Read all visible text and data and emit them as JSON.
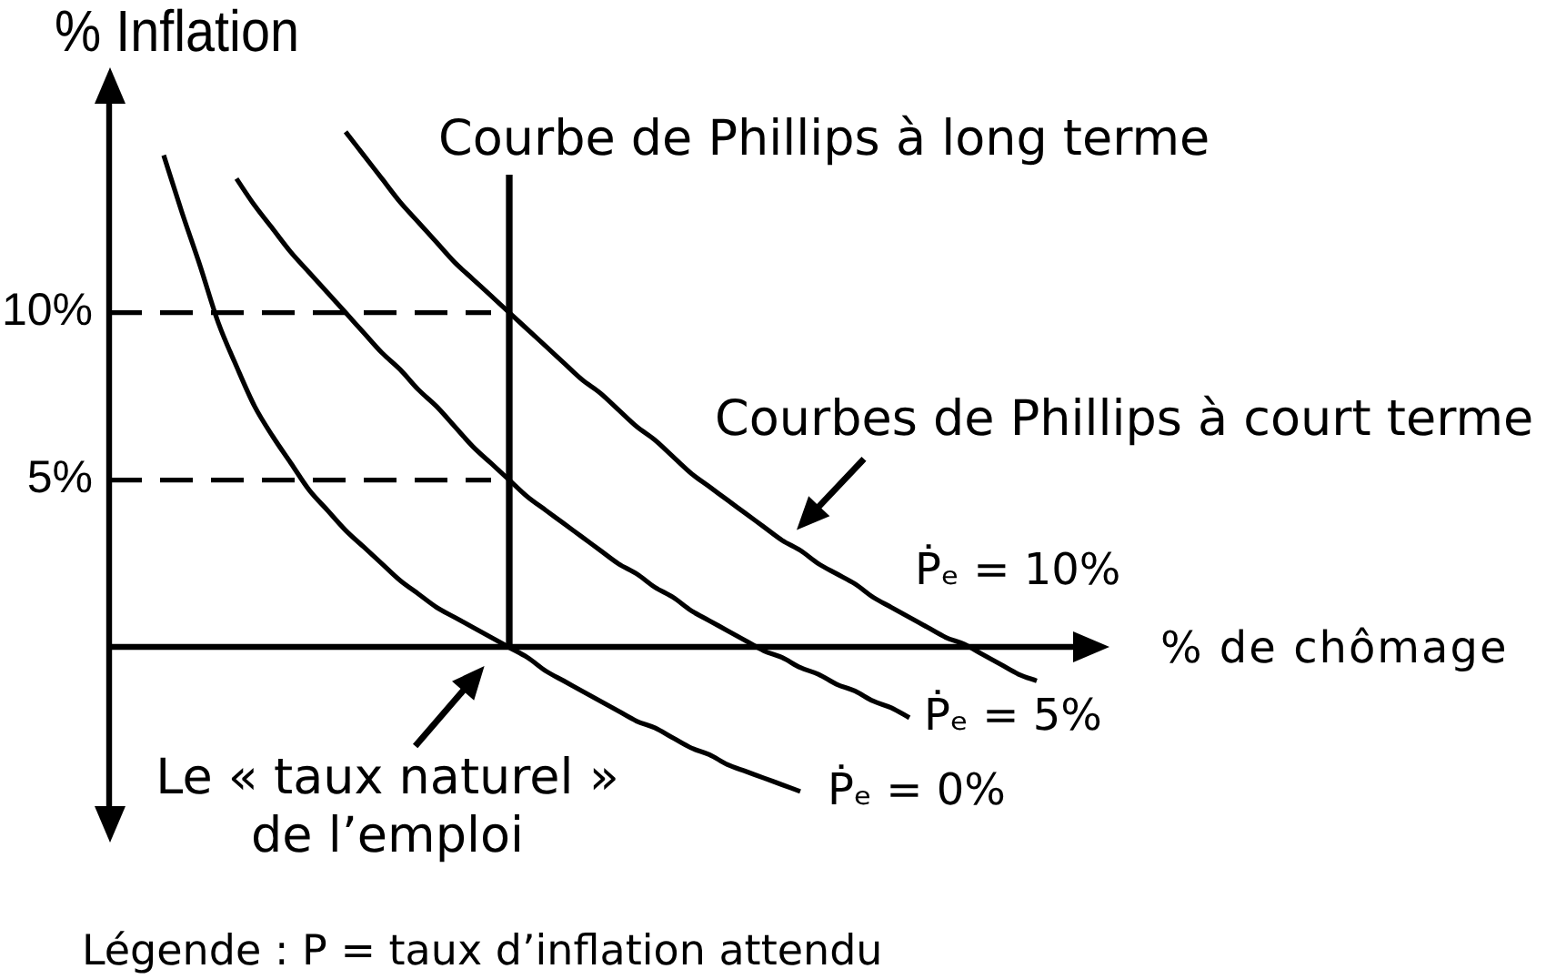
{
  "chart_data": {
    "type": "line",
    "ylabel": "% Inflation",
    "xlabel": "% de chômage",
    "categories": [
      null,
      null,
      null,
      null,
      null,
      null,
      null,
      null,
      null,
      null,
      null,
      null,
      null,
      null,
      null,
      null,
      null,
      null,
      null,
      null,
      null,
      null,
      null,
      null,
      null,
      null,
      null,
      null,
      null,
      null,
      null,
      null,
      null,
      null,
      null,
      null,
      null,
      null,
      null,
      null,
      null,
      null,
      null,
      null,
      null,
      null,
      null,
      null,
      null,
      null,
      null,
      null,
      null,
      null,
      null,
      null
    ],
    "ylim": [
      -5.5,
      17
    ],
    "yticks": [
      {
        "value": 5,
        "label": "5%"
      },
      {
        "value": 10,
        "label": "10%"
      }
    ],
    "tick_labels": "y",
    "series": [
      {
        "name": "Ṗₑ = 10%",
        "color": "#000000",
        "values": [
          null,
          null,
          null,
          null,
          null,
          null,
          null,
          null,
          null,
          null,
          null,
          null,
          null,
          15.4,
          14.7,
          14.0,
          13.3,
          12.7,
          12.1,
          11.5,
          11.0,
          10.5,
          10.0,
          9.5,
          9.0,
          8.5,
          8.0,
          7.6,
          7.1,
          6.6,
          6.2,
          5.7,
          5.2,
          4.8,
          4.4,
          4.0,
          3.6,
          3.2,
          2.9,
          2.5,
          2.2,
          1.9,
          1.5,
          1.2,
          0.9,
          0.6,
          0.3,
          0.1,
          -0.2,
          -0.5,
          -0.8,
          -1.0,
          null,
          null,
          null,
          null
        ]
      },
      {
        "name": "Ṗₑ = 5%",
        "color": "#000000",
        "values": [
          null,
          null,
          null,
          null,
          null,
          null,
          null,
          14.0,
          13.2,
          12.5,
          11.8,
          11.2,
          10.6,
          10.0,
          9.4,
          8.8,
          8.3,
          7.7,
          7.2,
          6.6,
          6.0,
          5.5,
          5.0,
          4.5,
          4.1,
          3.7,
          3.3,
          2.9,
          2.5,
          2.2,
          1.8,
          1.5,
          1.1,
          0.8,
          0.5,
          0.2,
          -0.1,
          -0.3,
          -0.6,
          -0.8,
          -1.1,
          -1.3,
          -1.6,
          -1.8,
          -2.1,
          null,
          null,
          null,
          null,
          null,
          null,
          null,
          null,
          null,
          null,
          null
        ]
      },
      {
        "name": "Ṗₑ = 0%",
        "color": "#000000",
        "values": [
          null,
          null,
          null,
          14.7,
          13.0,
          11.4,
          9.7,
          8.4,
          7.2,
          6.3,
          5.5,
          4.7,
          4.1,
          3.5,
          3.0,
          2.5,
          2.0,
          1.6,
          1.2,
          0.9,
          0.6,
          0.3,
          0.0,
          -0.3,
          -0.7,
          -1.0,
          -1.3,
          -1.6,
          -1.9,
          -2.2,
          -2.4,
          -2.7,
          -3.0,
          -3.2,
          -3.5,
          -3.7,
          -3.9,
          -4.1,
          -4.3,
          null,
          null,
          null,
          null,
          null,
          null,
          null,
          null,
          null,
          null,
          null,
          null,
          null,
          null,
          null,
          null,
          null
        ]
      },
      {
        "type": "bar",
        "name": "Courbe de Phillips à long terme",
        "color": "#000000",
        "values": [
          null,
          null,
          null,
          null,
          null,
          null,
          null,
          null,
          null,
          null,
          null,
          null,
          null,
          null,
          null,
          null,
          null,
          null,
          null,
          null,
          null,
          null,
          14.1,
          null,
          null,
          null,
          null,
          null,
          null,
          null,
          null,
          null,
          null,
          null,
          null,
          null,
          null,
          null,
          null,
          null,
          null,
          null,
          null,
          null,
          null,
          null,
          null,
          null,
          null,
          null,
          null,
          null,
          null,
          null,
          null,
          null
        ]
      },
      {
        "color": "#000000",
        "line_style": "dashed",
        "values": [
          10,
          10,
          10,
          10,
          10,
          10,
          10,
          10,
          10,
          10,
          10,
          10,
          10,
          10,
          10,
          10,
          10,
          10,
          10,
          10,
          10,
          10,
          null,
          null,
          null,
          null,
          null,
          null,
          null,
          null,
          null,
          null,
          null,
          null,
          null,
          null,
          null,
          null,
          null,
          null,
          null,
          null,
          null,
          null,
          null,
          null,
          null,
          null,
          null,
          null,
          null,
          null,
          null,
          null,
          null,
          null
        ]
      },
      {
        "color": "#000000",
        "line_style": "dashed",
        "values": [
          5,
          5,
          5,
          5,
          5,
          5,
          5,
          5,
          5,
          5,
          5,
          5,
          5,
          5,
          5,
          5,
          5,
          5,
          5,
          5,
          5,
          5,
          null,
          null,
          null,
          null,
          null,
          null,
          null,
          null,
          null,
          null,
          null,
          null,
          null,
          null,
          null,
          null,
          null,
          null,
          null,
          null,
          null,
          null,
          null,
          null,
          null,
          null,
          null,
          null,
          null,
          null,
          null,
          null,
          null,
          null
        ]
      }
    ],
    "annotations": [
      "Courbes de Phillips à court terme",
      "Le « taux naturel »\nde l’emploi",
      "Légende : P = taux d’inflation attendu"
    ]
  }
}
